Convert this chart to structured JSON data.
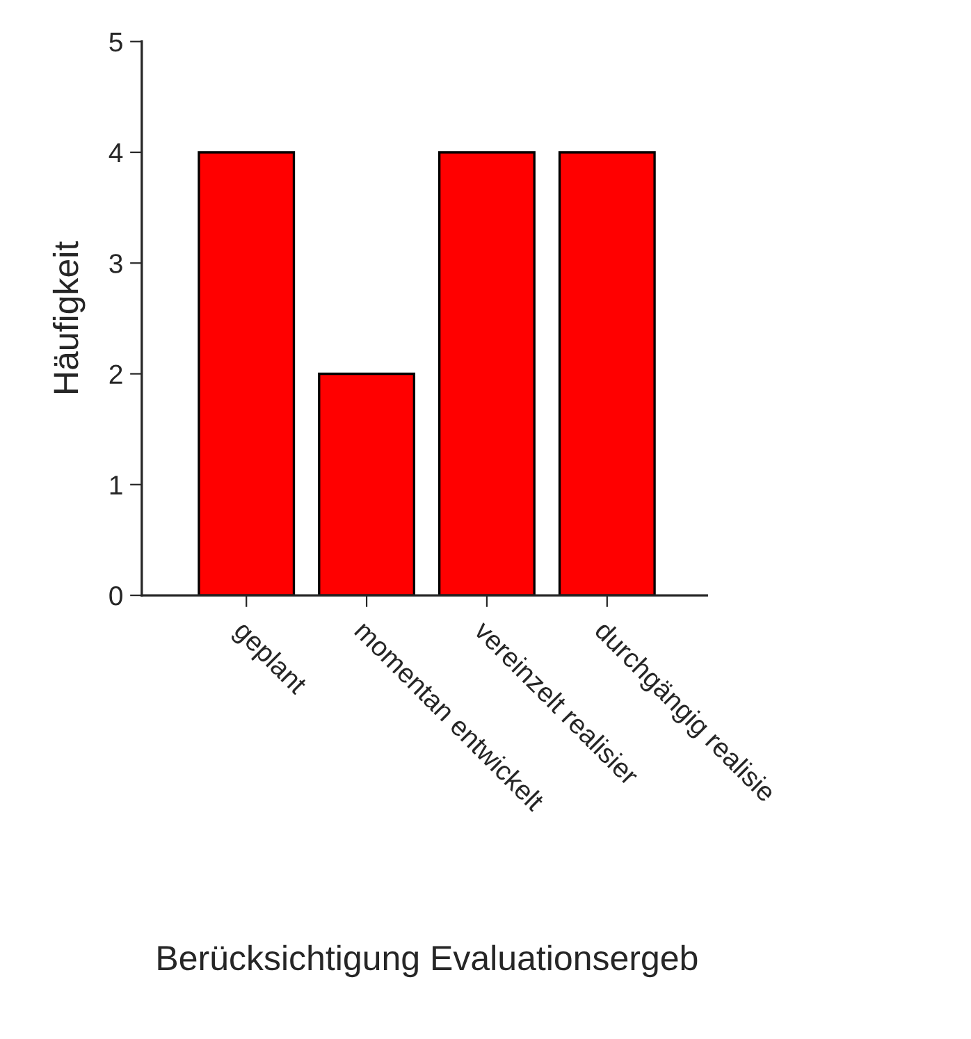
{
  "chart_data": {
    "type": "bar",
    "xlabel": "Berücksichtigung Evaluationsergeb",
    "ylabel": "Häufigkeit",
    "categories": [
      "geplant",
      "momentan entwickelt",
      "vereinzelt realisier",
      "durchgängig realisie"
    ],
    "values": [
      4,
      2,
      4,
      4
    ],
    "color": "#ff0000",
    "ylim": [
      0,
      5
    ],
    "yticks": [
      0,
      1,
      2,
      3,
      4,
      5
    ],
    "grid": false
  }
}
